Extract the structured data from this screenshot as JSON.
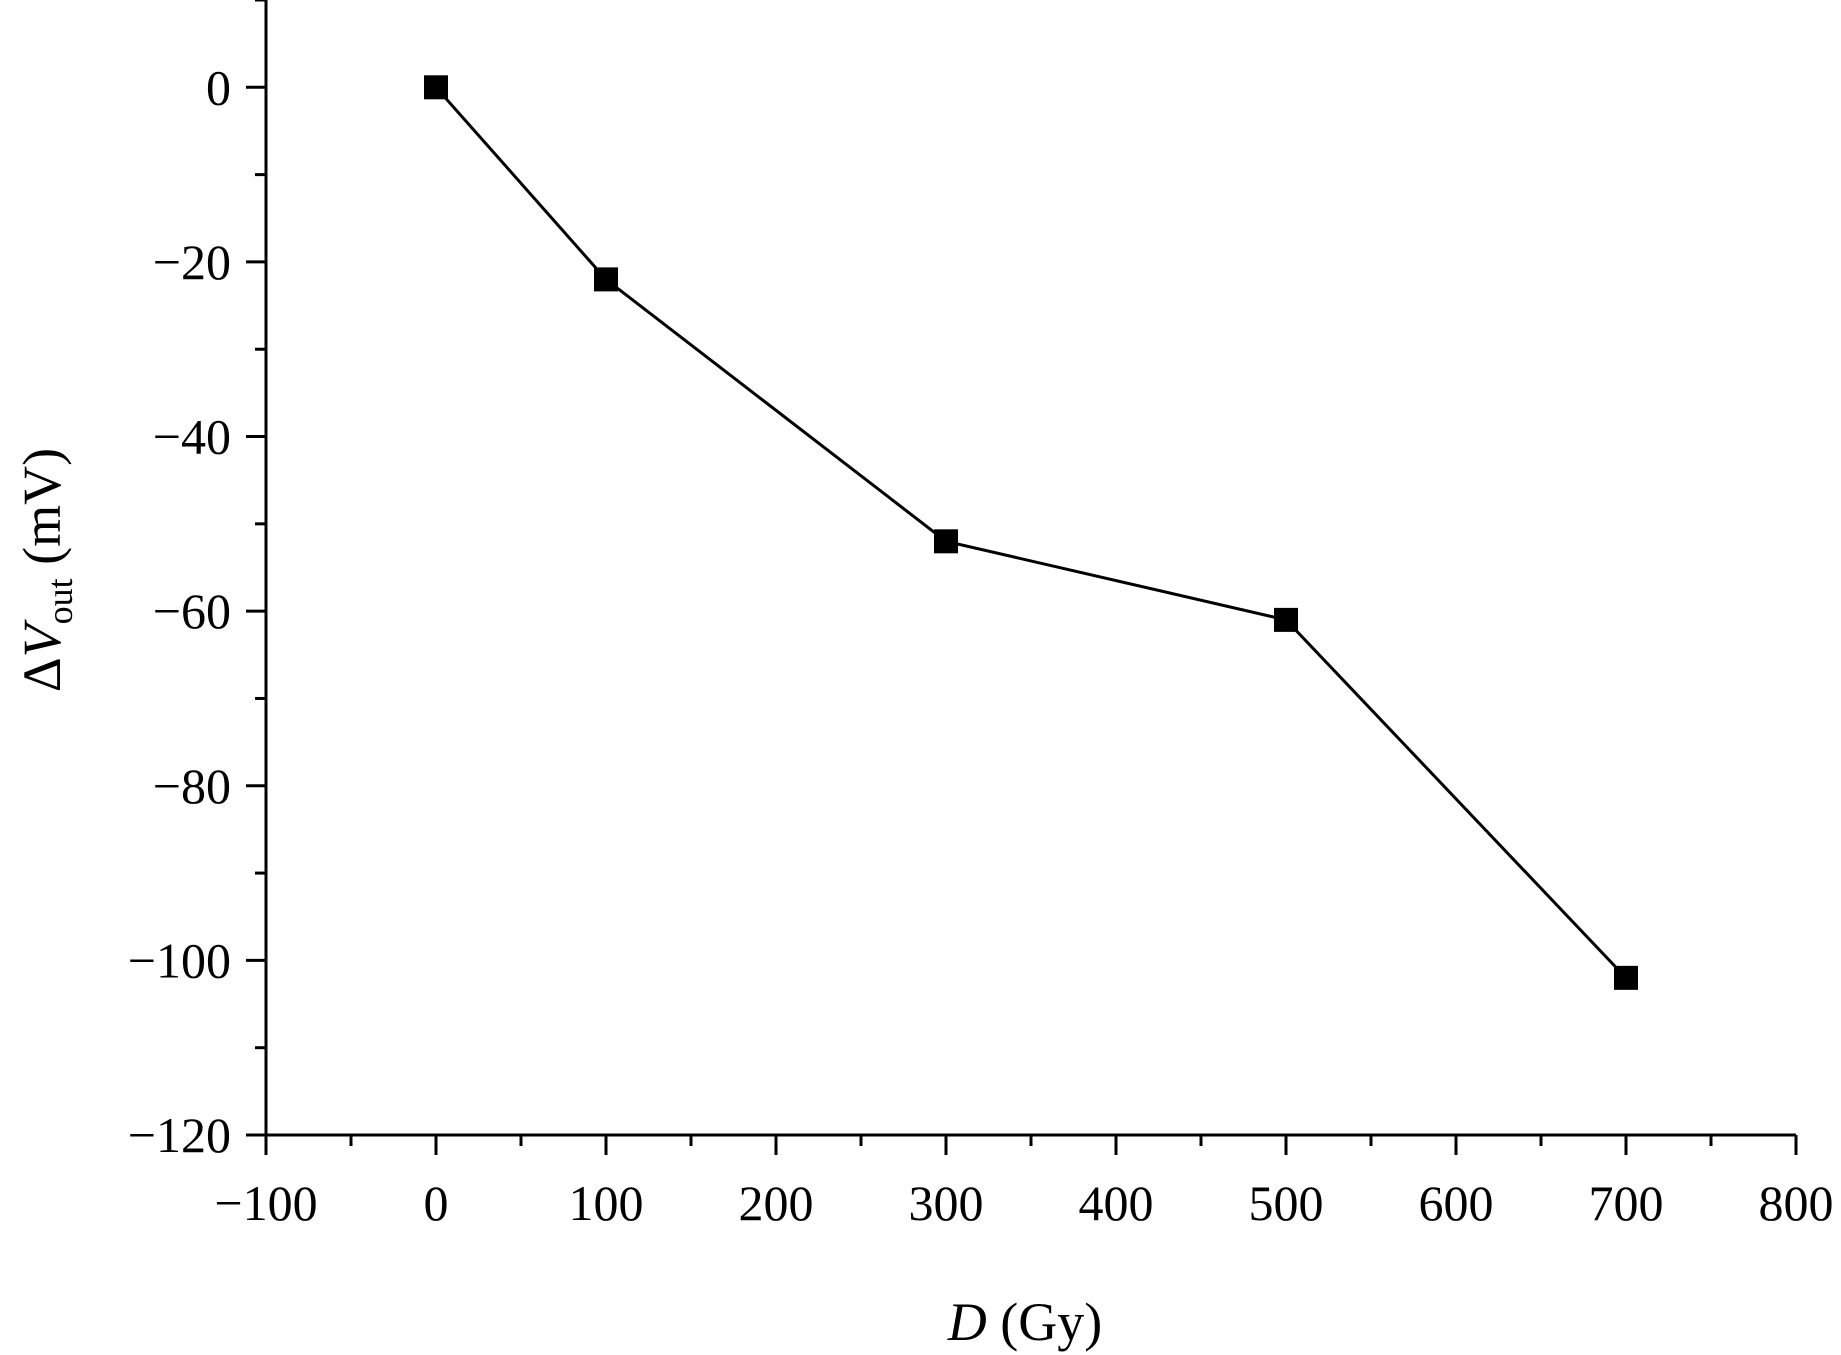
{
  "chart_data": {
    "type": "line",
    "xlabel": {
      "var": "D",
      "unit": " (Gy)"
    },
    "ylabel": {
      "prefix": "Δ",
      "var": "V",
      "sub": "out",
      "unit": " (mV)"
    },
    "xlim": [
      -100,
      800
    ],
    "ylim": [
      -120,
      10
    ],
    "xticks": [
      -100,
      0,
      100,
      200,
      300,
      400,
      500,
      600,
      700,
      800
    ],
    "xtick_labels": [
      "−100",
      "0",
      "100",
      "200",
      "300",
      "400",
      "500",
      "600",
      "700",
      "800"
    ],
    "x_minor_step": 50,
    "yticks": [
      0,
      -20,
      -40,
      -60,
      -80,
      -100,
      -120
    ],
    "ytick_labels": [
      "0",
      "−20",
      "−40",
      "−60",
      "−80",
      "−100",
      "−120"
    ],
    "y_minor_step": 10,
    "grid": false,
    "marker": "square",
    "series": [
      {
        "x": [
          0,
          100,
          300,
          500,
          700
        ],
        "y": [
          0,
          -22,
          -52,
          -61,
          -102
        ]
      }
    ]
  }
}
